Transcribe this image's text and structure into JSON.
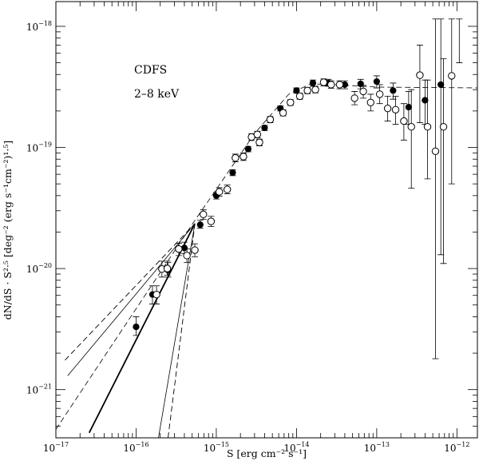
{
  "chart_data": {
    "type": "scatter",
    "title": "",
    "xlabel": "S [erg cm⁻² s⁻¹]",
    "ylabel": "dN/dS · S²·⁵ [deg⁻² (erg s⁻¹cm⁻²)¹·⁵]",
    "xscale": "log",
    "yscale": "log",
    "xlim": [
      1e-17,
      1.8e-12
    ],
    "ylim": [
      4e-22,
      1.6e-18
    ],
    "x_ticks": [
      {
        "mant": "10",
        "exp": "−17",
        "value": 1e-17
      },
      {
        "mant": "10",
        "exp": "−16",
        "value": 1e-16
      },
      {
        "mant": "10",
        "exp": "−15",
        "value": 1e-15
      },
      {
        "mant": "10",
        "exp": "−14",
        "value": 1e-14
      },
      {
        "mant": "10",
        "exp": "−13",
        "value": 1e-13
      },
      {
        "mant": "10",
        "exp": "−12",
        "value": 1e-12
      }
    ],
    "y_ticks": [
      {
        "mant": "10",
        "exp": "−21",
        "value": 1e-21
      },
      {
        "mant": "10",
        "exp": "−20",
        "value": 1e-20
      },
      {
        "mant": "10",
        "exp": "−19",
        "value": 1e-19
      },
      {
        "mant": "10",
        "exp": "−18",
        "value": 1e-18
      }
    ],
    "annotations": [
      "CDFS",
      "2–8 keV"
    ],
    "series": [
      {
        "name": "filled points",
        "marker": "filled-circle",
        "points": [
          {
            "x": 1e-16,
            "y": 3.3e-21,
            "ylo": 2.8e-21,
            "yhi": 4e-21
          },
          {
            "x": 1.6e-16,
            "y": 6.1e-21,
            "ylo": 5.1e-21,
            "yhi": 7.2e-21
          },
          {
            "x": 2.5e-16,
            "y": 9.7e-21,
            "ylo": 8.5e-21,
            "yhi": 1.12e-20
          },
          {
            "x": 4e-16,
            "y": 1.48e-20,
            "ylo": 1.33e-20,
            "yhi": 1.65e-20
          },
          {
            "x": 6.3e-16,
            "y": 2.3e-20,
            "ylo": 2.15e-20,
            "yhi": 2.5e-20
          },
          {
            "x": 1e-15,
            "y": 4e-20,
            "ylo": 3.75e-20,
            "yhi": 4.25e-20
          },
          {
            "x": 1.6e-15,
            "y": 6.2e-20,
            "ylo": 5.85e-20,
            "yhi": 6.55e-20
          },
          {
            "x": 2.5e-15,
            "y": 9.7e-20,
            "ylo": 9.2e-20,
            "yhi": 1.02e-19
          },
          {
            "x": 4e-15,
            "y": 1.45e-19,
            "ylo": 1.38e-19,
            "yhi": 1.52e-19
          },
          {
            "x": 6.3e-15,
            "y": 2.1e-19,
            "ylo": 2e-19,
            "yhi": 2.2e-19
          },
          {
            "x": 1e-14,
            "y": 2.95e-19,
            "ylo": 2.8e-19,
            "yhi": 3.1e-19
          },
          {
            "x": 1.6e-14,
            "y": 3.4e-19,
            "ylo": 3.2e-19,
            "yhi": 3.6e-19
          },
          {
            "x": 2.5e-14,
            "y": 3.4e-19,
            "ylo": 3.2e-19,
            "yhi": 3.65e-19
          },
          {
            "x": 4e-14,
            "y": 3.3e-19,
            "ylo": 3.05e-19,
            "yhi": 3.55e-19
          },
          {
            "x": 6.3e-14,
            "y": 3.35e-19,
            "ylo": 3.05e-19,
            "yhi": 3.65e-19
          },
          {
            "x": 1e-13,
            "y": 3.5e-19,
            "ylo": 3.1e-19,
            "yhi": 3.9e-19
          },
          {
            "x": 1.6e-13,
            "y": 2.95e-19,
            "ylo": 2.5e-19,
            "yhi": 3.4e-19
          },
          {
            "x": 2.5e-13,
            "y": 2.15e-19,
            "ylo": 1.55e-19,
            "yhi": 2.9e-19
          },
          {
            "x": 4e-13,
            "y": 2.45e-19,
            "ylo": 1.55e-19,
            "yhi": 3.6e-19
          },
          {
            "x": 6.3e-13,
            "y": 3.3e-19,
            "ylo": 1.3e-20,
            "yhi": 1.15e-18
          }
        ]
      },
      {
        "name": "open points",
        "marker": "open-circle",
        "points": [
          {
            "x": 1.8e-16,
            "y": 6.1e-21,
            "ylo": 5.1e-21,
            "yhi": 7.2e-21
          },
          {
            "x": 2.1e-16,
            "y": 9.9e-21,
            "ylo": 8.5e-21,
            "yhi": 1.15e-20
          },
          {
            "x": 2.45e-16,
            "y": 1e-20,
            "ylo": 8.8e-21,
            "yhi": 1.15e-20
          },
          {
            "x": 3.4e-16,
            "y": 1.45e-20,
            "ylo": 1.28e-20,
            "yhi": 1.62e-20
          },
          {
            "x": 4.3e-16,
            "y": 1.28e-20,
            "ylo": 1.12e-20,
            "yhi": 1.45e-20
          },
          {
            "x": 5.4e-16,
            "y": 1.42e-20,
            "ylo": 1.25e-20,
            "yhi": 1.6e-20
          },
          {
            "x": 6.9e-16,
            "y": 2.8e-20,
            "ylo": 2.55e-20,
            "yhi": 3.05e-20
          },
          {
            "x": 8.6e-16,
            "y": 2.45e-20,
            "ylo": 2.22e-20,
            "yhi": 2.7e-20
          },
          {
            "x": 1.09e-15,
            "y": 4.3e-20,
            "ylo": 3.95e-20,
            "yhi": 4.65e-20
          },
          {
            "x": 1.37e-15,
            "y": 4.5e-20,
            "ylo": 4.15e-20,
            "yhi": 4.9e-20
          },
          {
            "x": 1.73e-15,
            "y": 8.2e-20,
            "ylo": 7.6e-20,
            "yhi": 8.8e-20
          },
          {
            "x": 2.18e-15,
            "y": 8.4e-20,
            "ylo": 7.8e-20,
            "yhi": 9e-20
          },
          {
            "x": 2.75e-15,
            "y": 1.22e-19,
            "ylo": 1.14e-19,
            "yhi": 1.3e-19
          },
          {
            "x": 3.25e-15,
            "y": 1.28e-19,
            "ylo": 1.2e-19,
            "yhi": 1.36e-19
          },
          {
            "x": 3.45e-15,
            "y": 1.1e-19,
            "ylo": 1.03e-19,
            "yhi": 1.17e-19
          },
          {
            "x": 4.7e-15,
            "y": 1.7e-19,
            "ylo": 1.6e-19,
            "yhi": 1.8e-19
          },
          {
            "x": 6.8e-15,
            "y": 1.93e-19,
            "ylo": 1.82e-19,
            "yhi": 2.04e-19
          },
          {
            "x": 8.4e-15,
            "y": 2.35e-19,
            "ylo": 2.22e-19,
            "yhi": 2.48e-19
          },
          {
            "x": 1.1e-14,
            "y": 2.65e-19,
            "ylo": 2.5e-19,
            "yhi": 2.8e-19
          },
          {
            "x": 1.37e-14,
            "y": 2.95e-19,
            "ylo": 2.78e-19,
            "yhi": 3.12e-19
          },
          {
            "x": 1.72e-14,
            "y": 3e-19,
            "ylo": 2.82e-19,
            "yhi": 3.2e-19
          },
          {
            "x": 2.18e-14,
            "y": 3.45e-19,
            "ylo": 3.22e-19,
            "yhi": 3.68e-19
          },
          {
            "x": 2.7e-14,
            "y": 3.3e-19,
            "ylo": 3.08e-19,
            "yhi": 3.55e-19
          },
          {
            "x": 3.45e-14,
            "y": 3.3e-19,
            "ylo": 3.05e-19,
            "yhi": 3.55e-19
          },
          {
            "x": 5.3e-14,
            "y": 2.55e-19,
            "ylo": 2.25e-19,
            "yhi": 2.9e-19
          },
          {
            "x": 6.8e-14,
            "y": 2.9e-19,
            "ylo": 2.55e-19,
            "yhi": 3.25e-19
          },
          {
            "x": 8.4e-14,
            "y": 2.35e-19,
            "ylo": 2e-19,
            "yhi": 2.75e-19
          },
          {
            "x": 1.09e-13,
            "y": 2.75e-19,
            "ylo": 2.3e-19,
            "yhi": 3.3e-19
          },
          {
            "x": 1.37e-13,
            "y": 2.1e-19,
            "ylo": 1.65e-19,
            "yhi": 2.65e-19
          },
          {
            "x": 1.72e-13,
            "y": 2.05e-19,
            "ylo": 1.55e-19,
            "yhi": 2.65e-19
          },
          {
            "x": 2.18e-13,
            "y": 1.65e-19,
            "ylo": 1.15e-19,
            "yhi": 2.3e-19
          },
          {
            "x": 2.7e-13,
            "y": 1.48e-19,
            "ylo": 4.6e-20,
            "yhi": 3e-19
          },
          {
            "x": 3.45e-13,
            "y": 3.95e-19,
            "ylo": 1.6e-19,
            "yhi": 7e-19
          },
          {
            "x": 4.3e-13,
            "y": 1.48e-19,
            "ylo": 5.5e-20,
            "yhi": 3.6e-19
          },
          {
            "x": 5.4e-13,
            "y": 9.3e-20,
            "ylo": 1.8e-21,
            "yhi": 1.15e-18
          },
          {
            "x": 6.8e-13,
            "y": 1.48e-19,
            "ylo": 1.1e-20,
            "yhi": 5.4e-19
          },
          {
            "x": 8.6e-13,
            "y": 3.9e-19,
            "ylo": 5e-20,
            "yhi": 1.15e-18
          }
        ]
      },
      {
        "name": "upper error cap (no marker)",
        "marker": "none",
        "points": [
          {
            "x": 1.07e-12,
            "y": 1.15e-18,
            "ylo": 5e-19,
            "yhi": 1.15e-18
          }
        ]
      }
    ],
    "lines": [
      {
        "name": "model (dashed)",
        "style": "dashed",
        "width": 0.8,
        "points": [
          [
            1e-17,
            4.7e-22
          ],
          [
            5.4e-16,
            2.5e-20
          ],
          [
            1e-15,
            4.5e-20
          ],
          [
            3e-15,
            1.3e-19
          ],
          [
            8e-15,
            2.75e-19
          ],
          [
            1.5e-14,
            3.35e-19
          ],
          [
            3e-14,
            3.3e-19
          ],
          [
            1e-13,
            3.15e-19
          ],
          [
            1.8e-12,
            3.1e-19
          ]
        ]
      },
      {
        "name": "broken power law, steep bright end",
        "style": "solid",
        "width": 1.8,
        "points": [
          [
            2.6e-17,
            4.4e-22
          ],
          [
            5.4e-16,
            2.35e-20
          ]
        ]
      },
      {
        "name": "faint-end extrapolation 1",
        "style": "solid",
        "width": 0.8,
        "points": [
          [
            1.4e-17,
            1.3e-21
          ],
          [
            5.4e-16,
            2.35e-20
          ]
        ]
      },
      {
        "name": "faint-end extrapolation 2",
        "style": "dashed",
        "width": 0.9,
        "points": [
          [
            1.3e-17,
            1.75e-21
          ],
          [
            5.4e-16,
            2.35e-20
          ]
        ]
      },
      {
        "name": "faint-end extrapolation 3 (steep)",
        "style": "solid",
        "width": 0.8,
        "points": [
          [
            1.9e-16,
            4e-22
          ],
          [
            5.4e-16,
            2.35e-20
          ]
        ]
      },
      {
        "name": "faint-end extrapolation 4 (steep)",
        "style": "dashed",
        "width": 0.9,
        "points": [
          [
            2.5e-16,
            4e-22
          ],
          [
            5.4e-16,
            2.35e-20
          ]
        ]
      }
    ]
  }
}
